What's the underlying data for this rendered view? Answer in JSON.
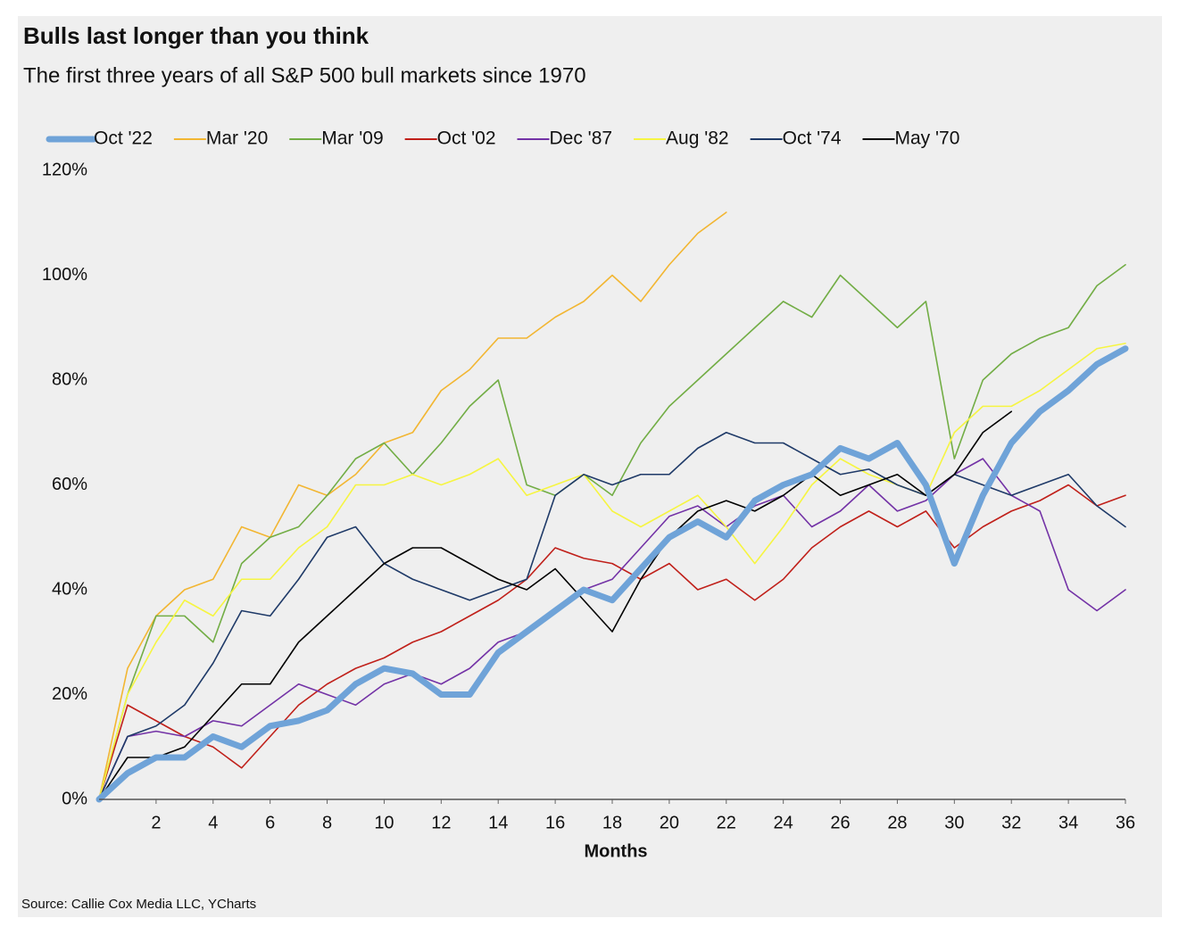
{
  "chart_data": {
    "type": "line",
    "title": "Bulls last longer than you think",
    "subtitle": "The first three years of all S&P 500 bull markets since 1970",
    "x_label": "Months",
    "source": "Source: Callie Cox Media LLC, YCharts",
    "legend": "top",
    "grid": false,
    "xlim": [
      0,
      36
    ],
    "xticks": [
      2,
      4,
      6,
      8,
      10,
      12,
      14,
      16,
      18,
      20,
      22,
      24,
      26,
      28,
      30,
      32,
      34,
      36
    ],
    "ylim": [
      0,
      120
    ],
    "yticks": [
      {
        "value": 0,
        "label": "0%"
      },
      {
        "value": 20,
        "label": "20%"
      },
      {
        "value": 40,
        "label": "40%"
      },
      {
        "value": 60,
        "label": "60%"
      },
      {
        "value": 80,
        "label": "80%"
      },
      {
        "value": 100,
        "label": "100%"
      },
      {
        "value": 120,
        "label": "120%"
      }
    ],
    "x": [
      0,
      1,
      2,
      3,
      4,
      5,
      6,
      7,
      8,
      9,
      10,
      11,
      12,
      13,
      14,
      15,
      16,
      17,
      18,
      19,
      20,
      21,
      22,
      23,
      24,
      25,
      26,
      27,
      28,
      29,
      30,
      31,
      32,
      33,
      34,
      35,
      36
    ],
    "series": [
      {
        "name": "Oct '22",
        "color": "#6fa3d8",
        "width": 7,
        "values": [
          0,
          5,
          8,
          8,
          12,
          10,
          14,
          15,
          17,
          22,
          25,
          24,
          20,
          20,
          28,
          32,
          36,
          40,
          38,
          44,
          50,
          53,
          50,
          57,
          60,
          62,
          67,
          65,
          68,
          60,
          45,
          58,
          68,
          74,
          78,
          83,
          86
        ]
      },
      {
        "name": "Mar '20",
        "color": "#f2b632",
        "width": 1.6,
        "values": [
          0,
          25,
          35,
          40,
          42,
          52,
          50,
          60,
          58,
          62,
          68,
          70,
          78,
          82,
          88,
          88,
          92,
          95,
          100,
          95,
          102,
          108,
          112,
          null,
          null,
          null,
          null,
          null,
          null,
          null,
          null,
          null,
          null,
          null,
          null,
          null,
          null
        ]
      },
      {
        "name": "Mar '09",
        "color": "#72ad45",
        "width": 1.6,
        "values": [
          0,
          20,
          35,
          35,
          30,
          45,
          50,
          52,
          58,
          65,
          68,
          62,
          68,
          75,
          80,
          60,
          58,
          62,
          58,
          68,
          75,
          80,
          85,
          90,
          95,
          92,
          100,
          95,
          90,
          95,
          65,
          80,
          85,
          88,
          90,
          98,
          102
        ]
      },
      {
        "name": "Oct '02",
        "color": "#c0201a",
        "width": 1.6,
        "values": [
          0,
          18,
          15,
          12,
          10,
          6,
          12,
          18,
          22,
          25,
          27,
          30,
          32,
          35,
          38,
          42,
          48,
          46,
          45,
          42,
          45,
          40,
          42,
          38,
          42,
          48,
          52,
          55,
          52,
          55,
          48,
          52,
          55,
          57,
          60,
          56,
          58
        ]
      },
      {
        "name": "Dec '87",
        "color": "#7332a6",
        "width": 1.6,
        "values": [
          0,
          12,
          13,
          12,
          15,
          14,
          18,
          22,
          20,
          18,
          22,
          24,
          22,
          25,
          30,
          32,
          36,
          40,
          42,
          48,
          54,
          56,
          52,
          56,
          58,
          52,
          55,
          60,
          55,
          57,
          62,
          65,
          58,
          55,
          40,
          36,
          40
        ]
      },
      {
        "name": "Aug '82",
        "color": "#f6f542",
        "width": 1.6,
        "values": [
          0,
          20,
          30,
          38,
          35,
          42,
          42,
          48,
          52,
          60,
          60,
          62,
          60,
          62,
          65,
          58,
          60,
          62,
          55,
          52,
          55,
          58,
          52,
          45,
          52,
          60,
          65,
          62,
          60,
          58,
          70,
          75,
          75,
          78,
          82,
          86,
          87
        ]
      },
      {
        "name": "Oct '74",
        "color": "#1f3a68",
        "width": 1.6,
        "values": [
          0,
          12,
          14,
          18,
          26,
          36,
          35,
          42,
          50,
          52,
          45,
          42,
          40,
          38,
          40,
          42,
          58,
          62,
          60,
          62,
          62,
          67,
          70,
          68,
          68,
          65,
          62,
          63,
          60,
          58,
          62,
          60,
          58,
          60,
          62,
          56,
          52
        ]
      },
      {
        "name": "May '70",
        "color": "#000000",
        "width": 1.6,
        "values": [
          0,
          8,
          8,
          10,
          16,
          22,
          22,
          30,
          35,
          40,
          45,
          48,
          48,
          45,
          42,
          40,
          44,
          38,
          32,
          42,
          50,
          55,
          57,
          55,
          58,
          62,
          58,
          60,
          62,
          58,
          62,
          70,
          74,
          null,
          null,
          null,
          null
        ]
      }
    ]
  }
}
